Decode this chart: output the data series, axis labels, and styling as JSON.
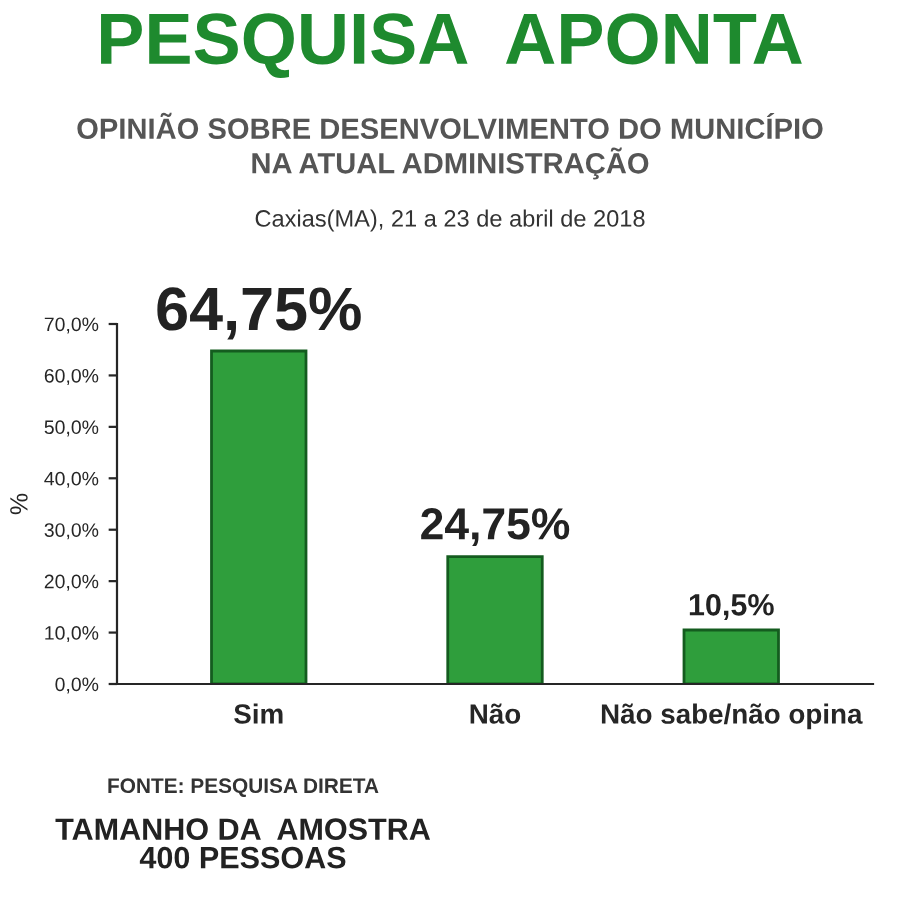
{
  "chart_data": {
    "type": "bar",
    "title": "PESQUISA  APONTA",
    "subtitle": "OPINIÃO SOBRE DESENVOLVIMENTO DO MUNICÍPIO\nNA ATUAL ADMINISTRAÇÃO",
    "ylabel": "%",
    "categories": [
      "Sim",
      "Não",
      "Não sabe/não opina"
    ],
    "values": [
      64.75,
      24.75,
      10.5
    ],
    "value_labels": [
      "64,75%",
      "24,75%",
      "10,5%"
    ],
    "color": "#2f9e3c",
    "ylim": [
      0,
      70
    ],
    "yticks": [
      {
        "value": 0,
        "label": "0,0%"
      },
      {
        "value": 10,
        "label": "10,0%"
      },
      {
        "value": 20,
        "label": "20,0%"
      },
      {
        "value": 30,
        "label": "30,0%"
      },
      {
        "value": 40,
        "label": "40,0%"
      },
      {
        "value": 50,
        "label": "50,0%"
      },
      {
        "value": 60,
        "label": "60,0%"
      },
      {
        "value": 70,
        "label": "70,0%"
      }
    ],
    "grid": false,
    "annotations": [
      "Caxias(MA), 21 a 23 de abril de 2018",
      "FONTE: PESQUISA DIRETA",
      "TAMANHO DA  AMOSTRA\n400 PESSOAS"
    ]
  }
}
